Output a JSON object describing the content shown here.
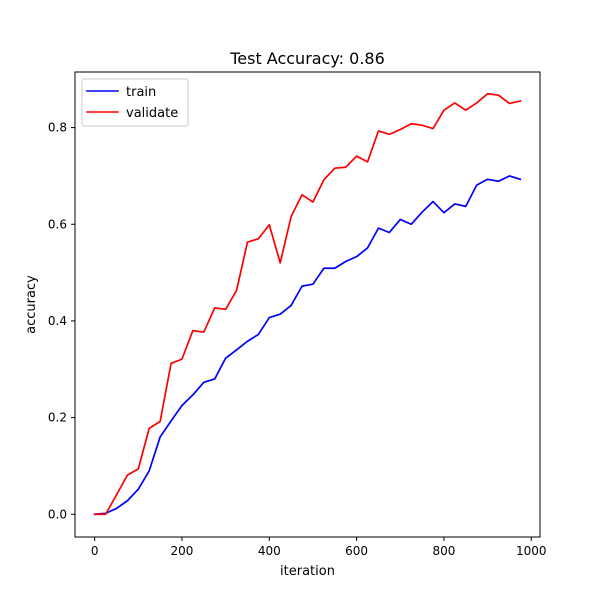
{
  "chart_data": {
    "type": "line",
    "title": "Test Accuracy: 0.86",
    "xlabel": "iteration",
    "ylabel": "accuracy",
    "xlim": [
      -45,
      1020
    ],
    "ylim": [
      -0.047,
      0.915
    ],
    "xticks": [
      0,
      200,
      400,
      600,
      800,
      1000
    ],
    "xtick_labels": [
      "0",
      "200",
      "400",
      "600",
      "800",
      "1000"
    ],
    "yticks": [
      0.0,
      0.2,
      0.4,
      0.6,
      0.8
    ],
    "ytick_labels": [
      "0.0",
      "0.2",
      "0.4",
      "0.6",
      "0.8"
    ],
    "grid": false,
    "legend_position": "top-left",
    "x": [
      0,
      25,
      50,
      75,
      100,
      125,
      150,
      175,
      200,
      225,
      250,
      275,
      300,
      325,
      350,
      375,
      400,
      425,
      450,
      475,
      500,
      525,
      550,
      575,
      600,
      625,
      650,
      675,
      700,
      725,
      750,
      775,
      800,
      825,
      850,
      875,
      900,
      925,
      950,
      975
    ],
    "series": [
      {
        "name": "train",
        "color": "#0000ff",
        "values": [
          0.0,
          0.002,
          0.012,
          0.028,
          0.052,
          0.09,
          0.16,
          0.193,
          0.225,
          0.247,
          0.273,
          0.28,
          0.323,
          0.34,
          0.358,
          0.372,
          0.407,
          0.414,
          0.432,
          0.472,
          0.476,
          0.509,
          0.509,
          0.523,
          0.533,
          0.551,
          0.592,
          0.583,
          0.61,
          0.6,
          0.625,
          0.647,
          0.624,
          0.642,
          0.637,
          0.681,
          0.693,
          0.689,
          0.7,
          0.693
        ]
      },
      {
        "name": "validate",
        "color": "#ff0000",
        "values": [
          0.0,
          0.0,
          0.04,
          0.081,
          0.094,
          0.178,
          0.192,
          0.312,
          0.321,
          0.38,
          0.377,
          0.427,
          0.424,
          0.463,
          0.563,
          0.57,
          0.599,
          0.52,
          0.616,
          0.661,
          0.646,
          0.692,
          0.716,
          0.718,
          0.741,
          0.729,
          0.793,
          0.786,
          0.796,
          0.808,
          0.805,
          0.798,
          0.836,
          0.851,
          0.836,
          0.851,
          0.87,
          0.867,
          0.85,
          0.855
        ]
      }
    ]
  }
}
